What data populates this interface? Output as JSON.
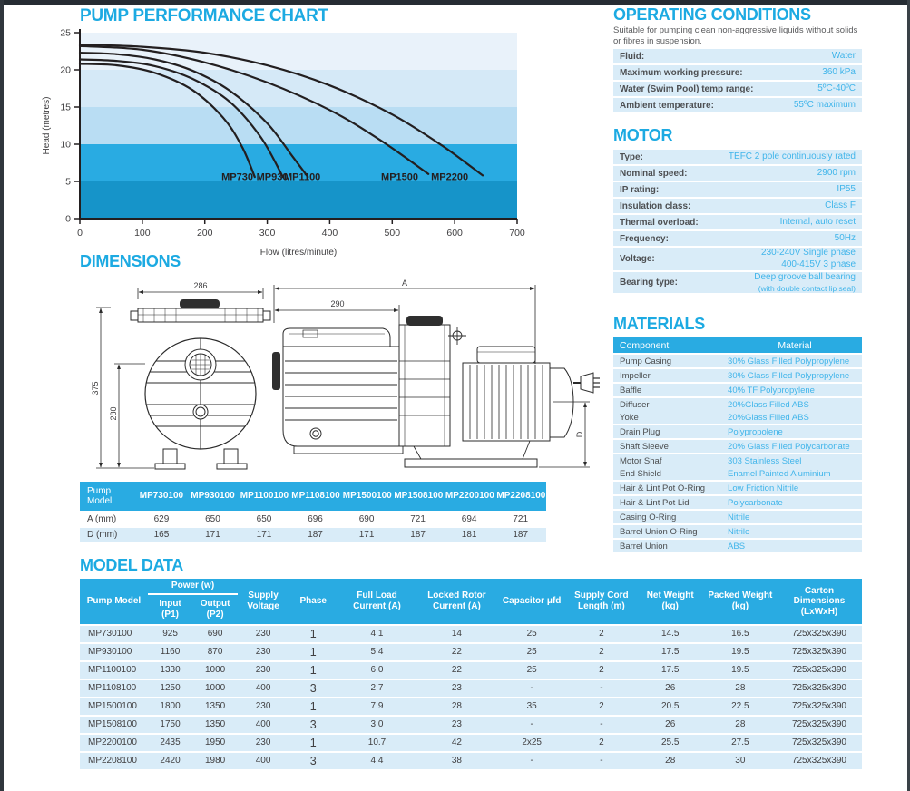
{
  "headings": {
    "performance": "PUMP PERFORMANCE CHART",
    "dimensions": "DIMENSIONS",
    "model_data": "MODEL DATA",
    "operating": "OPERATING CONDITIONS",
    "motor": "MOTOR",
    "materials": "MATERIALS"
  },
  "chart_data": {
    "type": "line",
    "title": "PUMP PERFORMANCE CHART",
    "xlabel": "Flow (litres/minute)",
    "ylabel": "Head (metres)",
    "xlim": [
      0,
      700
    ],
    "ylim": [
      0,
      25
    ],
    "xticks": [
      0,
      100,
      200,
      300,
      400,
      500,
      600,
      700
    ],
    "yticks": [
      0,
      5,
      10,
      15,
      20,
      25
    ],
    "grid": false,
    "legend_position": "labels-on-plot",
    "band_colors_bottom_to_top": [
      "#1694c9",
      "#29abe2",
      "#b9ddf3",
      "#d5e9f7",
      "#e9f2fa"
    ],
    "line_color": "#231f20",
    "series": [
      {
        "name": "MP730",
        "label_at": [
          252,
          5.2
        ],
        "points": [
          [
            0,
            20.8
          ],
          [
            60,
            20.6
          ],
          [
            120,
            19.6
          ],
          [
            180,
            17.3
          ],
          [
            230,
            13.5
          ],
          [
            260,
            9.6
          ],
          [
            280,
            5.6
          ]
        ]
      },
      {
        "name": "MP930",
        "label_at": [
          308,
          5.2
        ],
        "points": [
          [
            0,
            21.4
          ],
          [
            60,
            21.2
          ],
          [
            120,
            20.5
          ],
          [
            180,
            18.8
          ],
          [
            240,
            15.7
          ],
          [
            290,
            10.9
          ],
          [
            325,
            5.6
          ]
        ]
      },
      {
        "name": "MP1100",
        "label_at": [
          356,
          5.2
        ],
        "points": [
          [
            0,
            22.3
          ],
          [
            60,
            22.1
          ],
          [
            120,
            21.4
          ],
          [
            180,
            19.9
          ],
          [
            240,
            17.2
          ],
          [
            300,
            12.8
          ],
          [
            340,
            8.4
          ],
          [
            365,
            5.6
          ]
        ]
      },
      {
        "name": "MP1500",
        "label_at": [
          512,
          5.2
        ],
        "points": [
          [
            0,
            23.2
          ],
          [
            100,
            22.7
          ],
          [
            200,
            21.0
          ],
          [
            300,
            18.3
          ],
          [
            400,
            14.6
          ],
          [
            480,
            10.6
          ],
          [
            558,
            6.0
          ]
        ]
      },
      {
        "name": "MP2200",
        "label_at": [
          592,
          5.2
        ],
        "points": [
          [
            0,
            23.4
          ],
          [
            100,
            23.1
          ],
          [
            200,
            22.3
          ],
          [
            300,
            20.6
          ],
          [
            400,
            17.9
          ],
          [
            500,
            14.0
          ],
          [
            580,
            9.8
          ],
          [
            645,
            5.8
          ]
        ]
      }
    ]
  },
  "operating_conditions": {
    "intro": "Suitable for pumping clean non-aggressive liquids without solids or fibres in suspension.",
    "rows": [
      {
        "label": "Fluid:",
        "lines": [
          "Water"
        ]
      },
      {
        "label": "Maximum working pressure:",
        "lines": [
          "360 kPa"
        ]
      },
      {
        "label": "Water (Swim Pool) temp range:",
        "lines": [
          "5ºC-40ºC"
        ]
      },
      {
        "label": "Ambient temperature:",
        "lines": [
          "55ºC maximum"
        ]
      }
    ]
  },
  "motor": {
    "rows": [
      {
        "label": "Type:",
        "lines": [
          "TEFC 2 pole continuously rated"
        ]
      },
      {
        "label": "Nominal speed:",
        "lines": [
          "2900 rpm"
        ]
      },
      {
        "label": "IP rating:",
        "lines": [
          "IP55"
        ]
      },
      {
        "label": "Insulation class:",
        "lines": [
          "Class F"
        ]
      },
      {
        "label": "Thermal overload:",
        "lines": [
          "Internal, auto reset"
        ]
      },
      {
        "label": "Frequency:",
        "lines": [
          "50Hz"
        ]
      },
      {
        "label": "Voltage:",
        "lines": [
          "230-240V Single phase",
          "400-415V 3 phase"
        ]
      },
      {
        "label": "Bearing type:",
        "lines": [
          "Deep groove ball bearing"
        ],
        "note": "(with double contact lip seal)"
      }
    ]
  },
  "materials": {
    "headers": [
      "Component",
      "Material"
    ],
    "rows": [
      {
        "component": "Pump Casing",
        "material": "30% Glass Filled Polypropylene",
        "gap_after": true
      },
      {
        "component": "Impeller",
        "material": "30% Glass Filled Polypropylene",
        "gap_after": true
      },
      {
        "component": "Baffle",
        "material": "40% TF Polypropylene",
        "gap_after": true
      },
      {
        "component": "Diffuser",
        "material": "20%Glass Filled ABS",
        "gap_after": false
      },
      {
        "component": "Yoke",
        "material": "20%Glass Filled ABS",
        "gap_after": true
      },
      {
        "component": "Drain Plug",
        "material": "Polypropolene",
        "gap_after": true
      },
      {
        "component": "Shaft Sleeve",
        "material": "20% Glass Filled Polycarbonate",
        "gap_after": true
      },
      {
        "component": "Motor Shaf",
        "material": "303 Stainless Steel",
        "gap_after": false
      },
      {
        "component": "End Shield",
        "material": "Enamel Painted Aluminium",
        "gap_after": true
      },
      {
        "component": "Hair & Lint Pot O-Ring",
        "material": "Low Friction Nitrile",
        "gap_after": true
      },
      {
        "component": "Hair & Lint Pot Lid",
        "material": "Polycarbonate",
        "gap_after": true
      },
      {
        "component": "Casing O-Ring",
        "material": "Nitrile",
        "gap_after": true
      },
      {
        "component": "Barrel Union O-Ring",
        "material": "Nitrile",
        "gap_after": true
      },
      {
        "component": "Barrel Union",
        "material": "ABS",
        "gap_after": true
      }
    ]
  },
  "dimensions": {
    "front": {
      "width": "286",
      "height": "375",
      "inner_height": "280"
    },
    "side": {
      "overall": "A",
      "partial": "290",
      "height": "D"
    },
    "table": {
      "corner": "Pump\nModel",
      "models": [
        "MP730100",
        "MP930100",
        "MP1100100",
        "MP1108100",
        "MP1500100",
        "MP1508100",
        "MP2200100",
        "MP2208100"
      ],
      "rows": [
        {
          "label": "A (mm)",
          "values": [
            "629",
            "650",
            "650",
            "696",
            "690",
            "721",
            "694",
            "721"
          ]
        },
        {
          "label": "D (mm)",
          "values": [
            "165",
            "171",
            "171",
            "187",
            "171",
            "187",
            "181",
            "187"
          ]
        }
      ]
    }
  },
  "model_data": {
    "power_group": {
      "label": "Power (w)",
      "sub": [
        "Input (P1)",
        "Output (P2)"
      ]
    },
    "headers": {
      "pump_model": "Pump Model",
      "supply_voltage": "Supply Voltage",
      "phase": "Phase",
      "full_load": "Full Load Current (A)",
      "locked_rotor": "Locked Rotor Current (A)",
      "capacitor": "Capacitor μfd",
      "supply_cord": "Supply Cord Length (m)",
      "net_weight": "Net Weight (kg)",
      "packed_weight": "Packed Weight (kg)",
      "carton": "Carton Dimensions (LxWxH)"
    },
    "rows": [
      [
        "MP730100",
        "925",
        "690",
        "230",
        "1",
        "4.1",
        "14",
        "25",
        "2",
        "14.5",
        "16.5",
        "725x325x390"
      ],
      [
        "MP930100",
        "1160",
        "870",
        "230",
        "1",
        "5.4",
        "22",
        "25",
        "2",
        "17.5",
        "19.5",
        "725x325x390"
      ],
      [
        "MP1100100",
        "1330",
        "1000",
        "230",
        "1",
        "6.0",
        "22",
        "25",
        "2",
        "17.5",
        "19.5",
        "725x325x390"
      ],
      [
        "MP1108100",
        "1250",
        "1000",
        "400",
        "3",
        "2.7",
        "23",
        "-",
        "-",
        "26",
        "28",
        "725x325x390"
      ],
      [
        "MP1500100",
        "1800",
        "1350",
        "230",
        "1",
        "7.9",
        "28",
        "35",
        "2",
        "20.5",
        "22.5",
        "725x325x390"
      ],
      [
        "MP1508100",
        "1750",
        "1350",
        "400",
        "3",
        "3.0",
        "23",
        "-",
        "-",
        "26",
        "28",
        "725x325x390"
      ],
      [
        "MP2200100",
        "2435",
        "1950",
        "230",
        "1",
        "10.7",
        "42",
        "2x25",
        "2",
        "25.5",
        "27.5",
        "725x325x390"
      ],
      [
        "MP2208100",
        "2420",
        "1980",
        "400",
        "3",
        "4.4",
        "38",
        "-",
        "-",
        "28",
        "30",
        "725x325x390"
      ]
    ]
  },
  "colors": {
    "accent": "#1caae2",
    "table_header_bg": "#29abe2",
    "row_bg": "#d9ecf8",
    "label_text": "#4d4f52",
    "value_text": "#41b5ea"
  }
}
